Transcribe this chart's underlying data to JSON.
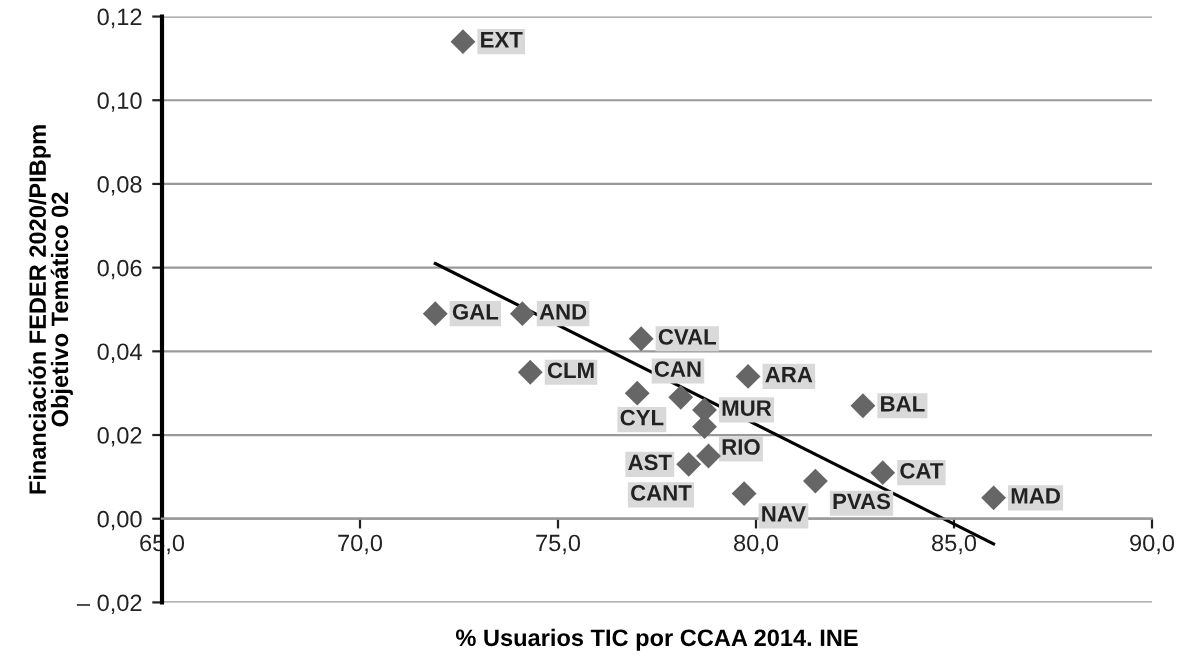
{
  "chart_data": {
    "type": "scatter",
    "xlabel": "% Usuarios TIC por CCAA 2014. INE",
    "ylabel": "Financiación FEDER 2020/PIBpm\nObjetivo Temático 02",
    "series": [
      {
        "color": "#666666",
        "x": [
          72.6,
          71.9,
          74.1,
          74.3,
          77.1,
          77.0,
          78.1,
          79.8,
          78.7,
          78.7,
          78.8,
          78.3,
          79.7,
          82.7,
          81.5,
          83.2,
          86.0
        ],
        "values": [
          0.114,
          0.049,
          0.049,
          0.035,
          0.043,
          0.03,
          0.029,
          0.034,
          0.026,
          0.022,
          0.015,
          0.013,
          0.006,
          0.027,
          0.009,
          0.011,
          0.005
        ]
      },
      {
        "type": "line",
        "color": "#000000",
        "x": [
          71.9,
          86.0
        ],
        "values": [
          0.061,
          -0.006
        ],
        "marker": "none"
      }
    ],
    "annotations": [
      {
        "text": "EXT",
        "x": 72.6,
        "y": 0.114
      },
      {
        "text": "GAL",
        "x": 71.9,
        "y": 0.049
      },
      {
        "text": "AND",
        "x": 74.1,
        "y": 0.049
      },
      {
        "text": "CLM",
        "x": 74.3,
        "y": 0.035
      },
      {
        "text": "CVAL",
        "x": 77.1,
        "y": 0.043
      },
      {
        "text": "CAN",
        "x": 77.0,
        "y": 0.03
      },
      {
        "text": "CYL",
        "x": 78.1,
        "y": 0.029
      },
      {
        "text": "ARA",
        "x": 79.8,
        "y": 0.034
      },
      {
        "text": "MUR",
        "x": 78.7,
        "y": 0.026
      },
      {
        "text": "RIO",
        "x": 78.7,
        "y": 0.022
      },
      {
        "text": "CANT",
        "x": 78.8,
        "y": 0.015
      },
      {
        "text": "AST",
        "x": 78.3,
        "y": 0.013
      },
      {
        "text": "NAV",
        "x": 79.7,
        "y": 0.006
      },
      {
        "text": "BAL",
        "x": 82.7,
        "y": 0.027
      },
      {
        "text": "PVAS",
        "x": 81.5,
        "y": 0.009
      },
      {
        "text": "CAT",
        "x": 83.2,
        "y": 0.011
      },
      {
        "text": "MAD",
        "x": 86.0,
        "y": 0.005
      }
    ],
    "xlim": [
      65,
      90
    ],
    "ylim": [
      -0.02,
      0.12
    ],
    "xticks": [
      {
        "value": 65,
        "label": "65,0"
      },
      {
        "value": 70,
        "label": "70,0"
      },
      {
        "value": 75,
        "label": "75,0"
      },
      {
        "value": 80,
        "label": "80,0"
      },
      {
        "value": 85,
        "label": "85,0"
      },
      {
        "value": 90,
        "label": "90,0"
      }
    ],
    "yticks": [
      {
        "value": -0.02,
        "label": "– 0,02"
      },
      {
        "value": 0,
        "label": "0,00"
      },
      {
        "value": 0.02,
        "label": "0,02"
      },
      {
        "value": 0.04,
        "label": "0,04"
      },
      {
        "value": 0.06,
        "label": "0,06"
      },
      {
        "value": 0.08,
        "label": "0,08"
      },
      {
        "value": 0.1,
        "label": "0,10"
      },
      {
        "value": 0.12,
        "label": "0,12"
      }
    ],
    "grid": "y",
    "legend": false,
    "marker": "diamond"
  }
}
